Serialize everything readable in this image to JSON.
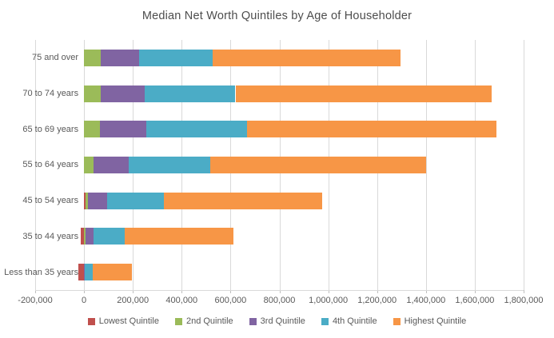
{
  "chart_data": {
    "type": "bar",
    "orientation": "horizontal_stacked",
    "title": "Median Net Worth Quintiles by Age of Householder",
    "categories": [
      "75 and over",
      "70 to 74 years",
      "65 to 69 years",
      "55 to 64 years",
      "45 to 54 years",
      "35 to 44 years",
      "Less than 35 years"
    ],
    "series": [
      {
        "name": "Lowest Quintile",
        "color": "#C0504D",
        "values": [
          0,
          0,
          0,
          0,
          6000,
          -14000,
          -24000
        ]
      },
      {
        "name": "2nd Quintile",
        "color": "#9BBB59",
        "values": [
          68000,
          67000,
          65000,
          38000,
          11000,
          7000,
          1000
        ]
      },
      {
        "name": "3rd Quintile",
        "color": "#8064A2",
        "values": [
          158000,
          180000,
          189000,
          146000,
          77000,
          33000,
          3000
        ]
      },
      {
        "name": "4th Quintile",
        "color": "#4BACC6",
        "values": [
          301000,
          373000,
          412000,
          332000,
          232000,
          128000,
          31000
        ]
      },
      {
        "name": "Highest Quintile",
        "color": "#F79646",
        "values": [
          768000,
          1048000,
          1022000,
          886000,
          650000,
          443000,
          160000
        ]
      }
    ],
    "bar_totals_positive": [
      1295000,
      1668000,
      1688000,
      1402000,
      976000,
      611000,
      195000
    ],
    "axis": {
      "min": -200000,
      "max": 1800000,
      "tick_step": 200000,
      "tick_values": [
        -200000,
        0,
        200000,
        400000,
        600000,
        800000,
        1000000,
        1200000,
        1400000,
        1600000,
        1800000
      ],
      "tick_labels": [
        "-200,000",
        "0",
        "200,000",
        "400,000",
        "600,000",
        "800,000",
        "1,000,000",
        "1,200,000",
        "1,400,000",
        "1,600,000",
        "1,800,000"
      ]
    },
    "grid": true,
    "legend_position": "bottom",
    "gridline_color": "#D9D9D9",
    "text_color": "#595959"
  }
}
